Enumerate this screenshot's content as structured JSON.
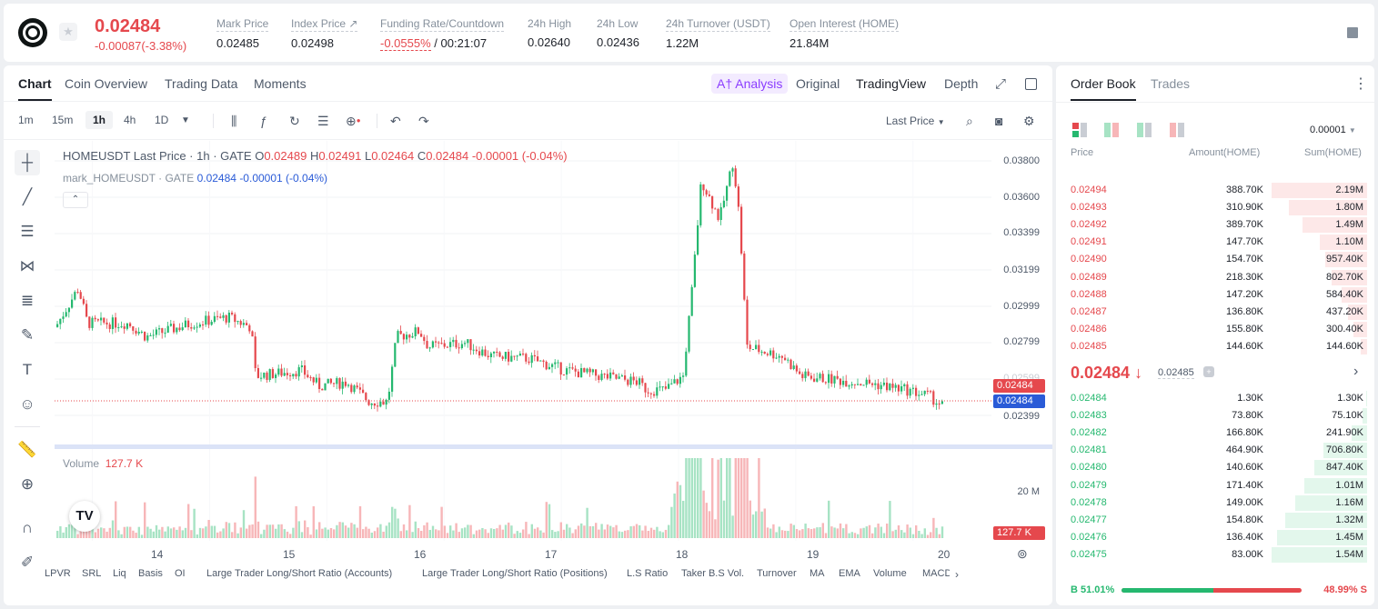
{
  "header": {
    "last_price": "0.02484",
    "change": "-0.00087(-3.38%)",
    "stats": [
      {
        "label": "Mark Price",
        "value": "0.02485"
      },
      {
        "label": "Index Price ↗",
        "value": "0.02498"
      },
      {
        "label": "Funding Rate/Countdown",
        "value": "-0.0555%",
        "value2": "/ 00:21:07"
      },
      {
        "label": "24h High",
        "value": "0.02640"
      },
      {
        "label": "24h Low",
        "value": "0.02436"
      },
      {
        "label": "24h Turnover (USDT)",
        "value": "1.22M"
      },
      {
        "label": "Open Interest (HOME)",
        "value": "21.84M"
      }
    ]
  },
  "chart_tabs": [
    "Chart",
    "Coin Overview",
    "Trading Data",
    "Moments"
  ],
  "view_tabs": {
    "ai": "A† Analysis",
    "original": "Original",
    "tradingview": "TradingView",
    "depth": "Depth"
  },
  "timeframes": [
    "1m",
    "15m",
    "1h",
    "4h",
    "1D"
  ],
  "last_price_select": "Last Price",
  "legend": {
    "symbol": "HOMEUSDT Last Price · 1h · GATE",
    "o_lbl": "O",
    "o": "0.02489",
    "h_lbl": "H",
    "h": "0.02491",
    "l_lbl": "L",
    "l": "0.02464",
    "c_lbl": "C",
    "c": "0.02484",
    "chg": "-0.00001 (-0.04%)",
    "mark_name": "mark_HOMEUSDT · GATE",
    "mark_val": "0.02484",
    "mark_chg": "-0.00001 (-0.04%)"
  },
  "volume_legend": {
    "label": "Volume",
    "value": "127.7 K"
  },
  "chart_data": {
    "type": "candlestick",
    "y_ticks": [
      "0.03800",
      "0.03600",
      "0.03399",
      "0.03199",
      "0.02999",
      "0.02799",
      "0.02599",
      "0.02399"
    ],
    "x_ticks": [
      "14",
      "15",
      "16",
      "17",
      "18",
      "19",
      "20"
    ],
    "price_tags": {
      "last": "0.02484",
      "mark": "0.02484"
    },
    "volume_ticks": [
      "20 M"
    ],
    "volume_tag": "127.7 K",
    "ylim": [
      0.0232,
      0.0385
    ]
  },
  "indicators": [
    "LPVR",
    "SRL",
    "Liq",
    "Basis",
    "OI",
    "Large Trader Long/Short Ratio (Accounts)",
    "Large Trader Long/Short Ratio (Positions)",
    "L.S Ratio",
    "Taker B.S Vol.",
    "Turnover",
    "MA",
    "EMA",
    "Volume",
    "MACD"
  ],
  "orderbook": {
    "tabs": [
      "Order Book",
      "Trades"
    ],
    "precision": "0.00001",
    "headers": {
      "price": "Price",
      "amount": "Amount(HOME)",
      "sum": "Sum(HOME)"
    },
    "asks": [
      {
        "price": "0.02494",
        "amount": "388.70K",
        "sum": "2.19M",
        "depth": 1.0
      },
      {
        "price": "0.02493",
        "amount": "310.90K",
        "sum": "1.80M",
        "depth": 0.82
      },
      {
        "price": "0.02492",
        "amount": "389.70K",
        "sum": "1.49M",
        "depth": 0.68
      },
      {
        "price": "0.02491",
        "amount": "147.70K",
        "sum": "1.10M",
        "depth": 0.5
      },
      {
        "price": "0.02490",
        "amount": "154.70K",
        "sum": "957.40K",
        "depth": 0.44
      },
      {
        "price": "0.02489",
        "amount": "218.30K",
        "sum": "802.70K",
        "depth": 0.37
      },
      {
        "price": "0.02488",
        "amount": "147.20K",
        "sum": "584.40K",
        "depth": 0.27
      },
      {
        "price": "0.02487",
        "amount": "136.80K",
        "sum": "437.20K",
        "depth": 0.2
      },
      {
        "price": "0.02486",
        "amount": "155.80K",
        "sum": "300.40K",
        "depth": 0.14
      },
      {
        "price": "0.02485",
        "amount": "144.60K",
        "sum": "144.60K",
        "depth": 0.07
      }
    ],
    "mid_price": "0.02484 ↓",
    "mid_mark": "0.02485",
    "bids": [
      {
        "price": "0.02484",
        "amount": "1.30K",
        "sum": "1.30K",
        "depth": 0.01
      },
      {
        "price": "0.02483",
        "amount": "73.80K",
        "sum": "75.10K",
        "depth": 0.05
      },
      {
        "price": "0.02482",
        "amount": "166.80K",
        "sum": "241.90K",
        "depth": 0.16
      },
      {
        "price": "0.02481",
        "amount": "464.90K",
        "sum": "706.80K",
        "depth": 0.46
      },
      {
        "price": "0.02480",
        "amount": "140.60K",
        "sum": "847.40K",
        "depth": 0.55
      },
      {
        "price": "0.02479",
        "amount": "171.40K",
        "sum": "1.01M",
        "depth": 0.66
      },
      {
        "price": "0.02478",
        "amount": "149.00K",
        "sum": "1.16M",
        "depth": 0.75
      },
      {
        "price": "0.02477",
        "amount": "154.80K",
        "sum": "1.32M",
        "depth": 0.86
      },
      {
        "price": "0.02476",
        "amount": "136.40K",
        "sum": "1.45M",
        "depth": 0.94
      },
      {
        "price": "0.02475",
        "amount": "83.00K",
        "sum": "1.54M",
        "depth": 1.0
      }
    ],
    "buy_ratio": "B 51.01%",
    "sell_ratio": "48.99% S",
    "buy_fraction": 0.5101
  },
  "colors": {
    "up": "#25b86f",
    "down": "#e5484d",
    "mark": "#2a5bd7"
  }
}
